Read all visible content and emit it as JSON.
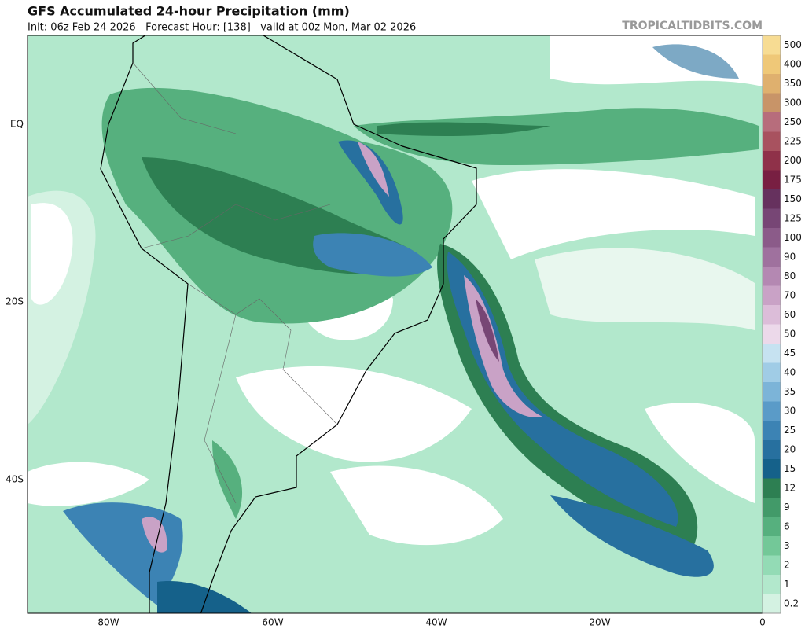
{
  "header": {
    "title": "GFS Accumulated 24-hour Precipitation (mm)",
    "subtitle": "Init: 06z Feb 24 2026   Forecast Hour: [138]   valid at 00z Mon, Mar 02 2026",
    "site": "TROPICALTIDBITS.COM"
  },
  "axes": {
    "lat_labels": [
      "EQ",
      "20S",
      "40S"
    ],
    "lon_labels": [
      "80W",
      "60W",
      "40W",
      "20W",
      "0"
    ]
  },
  "legend": {
    "levels": [
      {
        "label": "0.2",
        "color": "#d4f2e2"
      },
      {
        "label": "1",
        "color": "#b2e8cc"
      },
      {
        "label": "2",
        "color": "#93dbb5"
      },
      {
        "label": "3",
        "color": "#73c898"
      },
      {
        "label": "6",
        "color": "#56b07e"
      },
      {
        "label": "9",
        "color": "#429a69"
      },
      {
        "label": "12",
        "color": "#2d7f52"
      },
      {
        "label": "15",
        "color": "#15618a"
      },
      {
        "label": "20",
        "color": "#27709f"
      },
      {
        "label": "25",
        "color": "#3c83b4"
      },
      {
        "label": "30",
        "color": "#5a9bc8"
      },
      {
        "label": "35",
        "color": "#7cb4d8"
      },
      {
        "label": "40",
        "color": "#a0cce6"
      },
      {
        "label": "45",
        "color": "#c6e2f1"
      },
      {
        "label": "50",
        "color": "#ecd9ea"
      },
      {
        "label": "60",
        "color": "#dcbdd9"
      },
      {
        "label": "70",
        "color": "#c9a2c6"
      },
      {
        "label": "80",
        "color": "#b488b2"
      },
      {
        "label": "90",
        "color": "#9f719e"
      },
      {
        "label": "100",
        "color": "#8b5b89"
      },
      {
        "label": "125",
        "color": "#774675"
      },
      {
        "label": "150",
        "color": "#66315e"
      },
      {
        "label": "175",
        "color": "#781f42"
      },
      {
        "label": "200",
        "color": "#8f3149"
      },
      {
        "label": "225",
        "color": "#a8525f"
      },
      {
        "label": "250",
        "color": "#b76d7c"
      },
      {
        "label": "300",
        "color": "#c89468"
      },
      {
        "label": "350",
        "color": "#dfb06e"
      },
      {
        "label": "400",
        "color": "#efc878"
      },
      {
        "label": "500",
        "color": "#f7dc93"
      }
    ]
  }
}
